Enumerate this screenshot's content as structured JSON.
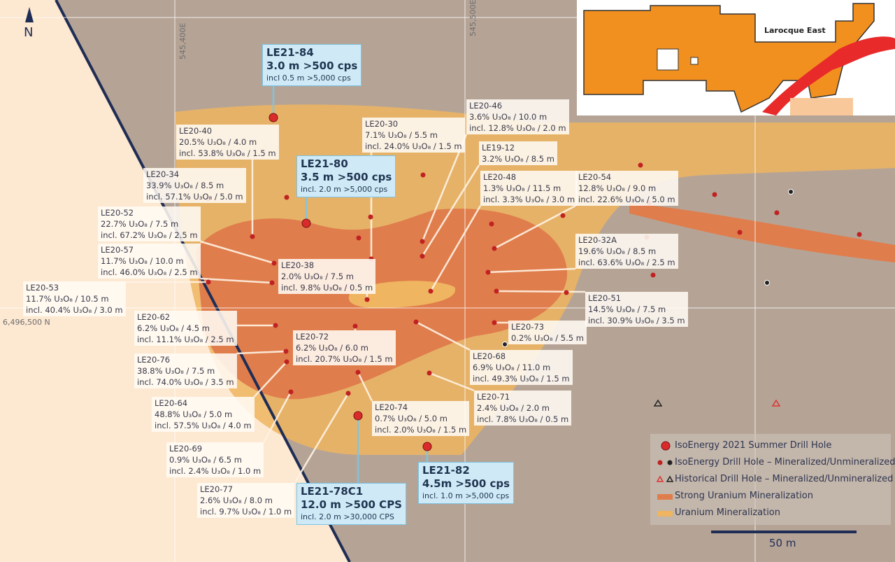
{
  "north": "N",
  "grid_labels": {
    "e1": "545,400E",
    "e2": "545,500E",
    "n1": "6,496,500 N"
  },
  "inset": {
    "label": "Larocque East"
  },
  "labels": [
    {
      "hole": "LE20-40",
      "lines": [
        "20.5% U₃O₈ / 4.0 m",
        "incl. 53.8% U₃O₈ / 1.5 m"
      ]
    },
    {
      "hole": "LE20-34",
      "lines": [
        "33.9% U₃O₈ / 8.5 m",
        "incl. 57.1% U₃O₈ / 5.0 m"
      ]
    },
    {
      "hole": "LE20-52",
      "lines": [
        "22.7% U₃O₈ / 7.5 m",
        "incl. 67.2% U₃O₈ / 2.5 m"
      ]
    },
    {
      "hole": "LE20-57",
      "lines": [
        "11.7% U₃O₈ / 10.0 m",
        "incl. 46.0% U₃O₈ / 2.5 m"
      ]
    },
    {
      "hole": "LE20-53",
      "lines": [
        "11.7% U₃O₈ / 10.5 m",
        "incl. 40.4% U₃O₈ / 3.0 m"
      ]
    },
    {
      "hole": "LE20-38",
      "lines": [
        "2.0% U₃O₈ / 7.5 m",
        "incl. 9.8% U₃O₈ / 0.5 m"
      ]
    },
    {
      "hole": "LE20-30",
      "lines": [
        "7.1% U₃O₈ / 5.5 m",
        "incl. 24.0% U₃O₈ / 1.5 m"
      ]
    },
    {
      "hole": "LE20-46",
      "lines": [
        "3.6% U₃O₈ / 10.0 m",
        "incl. 12.8% U₃O₈ / 2.0 m"
      ]
    },
    {
      "hole": "LE19-12",
      "lines": [
        "3.2% U₃O₈ / 8.5 m"
      ]
    },
    {
      "hole": "LE20-48",
      "lines": [
        "1.3% U₃O₈ / 11.5 m",
        "incl. 3.3% U₃O₈ / 3.0 m"
      ]
    },
    {
      "hole": "LE20-54",
      "lines": [
        "12.8% U₃O₈ / 9.0 m",
        "incl. 22.6% U₃O₈ / 5.0 m"
      ]
    },
    {
      "hole": "LE20-32A",
      "lines": [
        "19.6% U₃O₈ / 8.5 m",
        "incl. 63.6% U₃O₈ / 2.5 m"
      ]
    },
    {
      "hole": "LE20-51",
      "lines": [
        "14.5% U₃O₈ / 7.5 m",
        "incl. 30.9% U₃O₈ / 3.5 m"
      ]
    },
    {
      "hole": "LE20-73",
      "lines": [
        "0.2% U₃O₈ / 5.5 m"
      ]
    },
    {
      "hole": "LE20-62",
      "lines": [
        "6.2% U₃O₈ / 4.5 m",
        "incl. 11.1% U₃O₈ / 2.5 m"
      ]
    },
    {
      "hole": "LE20-72",
      "lines": [
        "6.2% U₃O₈ / 6.0 m",
        "incl. 20.7% U₃O₈ / 1.5 m"
      ]
    },
    {
      "hole": "LE20-76",
      "lines": [
        "38.8% U₃O₈ / 7.5 m",
        "incl. 74.0% U₃O₈ / 3.5 m"
      ]
    },
    {
      "hole": "LE20-68",
      "lines": [
        "6.9% U₃O₈ / 11.0 m",
        "incl. 49.3% U₃O₈ / 1.5 m"
      ]
    },
    {
      "hole": "LE20-71",
      "lines": [
        "2.4% U₃O₈ / 2.0 m",
        "incl. 7.8% U₃O₈ / 0.5 m"
      ]
    },
    {
      "hole": "LE20-64",
      "lines": [
        "48.8% U₃O₈ / 5.0 m",
        "incl. 57.5% U₃O₈ / 4.0 m"
      ]
    },
    {
      "hole": "LE20-74",
      "lines": [
        "0.7% U₃O₈ / 5.0 m",
        "incl. 2.0% U₃O₈ / 1.5 m"
      ]
    },
    {
      "hole": "LE20-69",
      "lines": [
        "0.9% U₃O₈ / 6.5 m",
        "incl. 2.4% U₃O₈ / 1.0 m"
      ]
    },
    {
      "hole": "LE20-77",
      "lines": [
        "2.6% U₃O₈ / 8.0 m",
        "incl. 9.7% U₃O₈ / 1.0 m"
      ]
    }
  ],
  "highlights": [
    {
      "hole": "LE21-84",
      "main": "3.0 m >500 cps",
      "incl": "incl 0.5 m >5,000 cps"
    },
    {
      "hole": "LE21-80",
      "main": "3.5 m >500 cps",
      "incl": "incl. 2.0 m >5,000 cps"
    },
    {
      "hole": "LE21-78C1",
      "main": "12.0 m >500 CPS",
      "incl": "incl. 2.0 m >30,000 CPS"
    },
    {
      "hole": "LE21-82",
      "main": "4.5m >500 cps",
      "incl": "incl. 1.0 m >5,000 cps"
    }
  ],
  "legend": [
    "IsoEnergy 2021 Summer Drill Hole",
    "IsoEnergy Drill Hole – Mineralized/Unmineralized",
    "Historical Drill Hole – Mineralized/Unmineralized",
    "Strong Uranium Mineralization",
    "Uranium  Mineralization"
  ],
  "scale": "50 m"
}
